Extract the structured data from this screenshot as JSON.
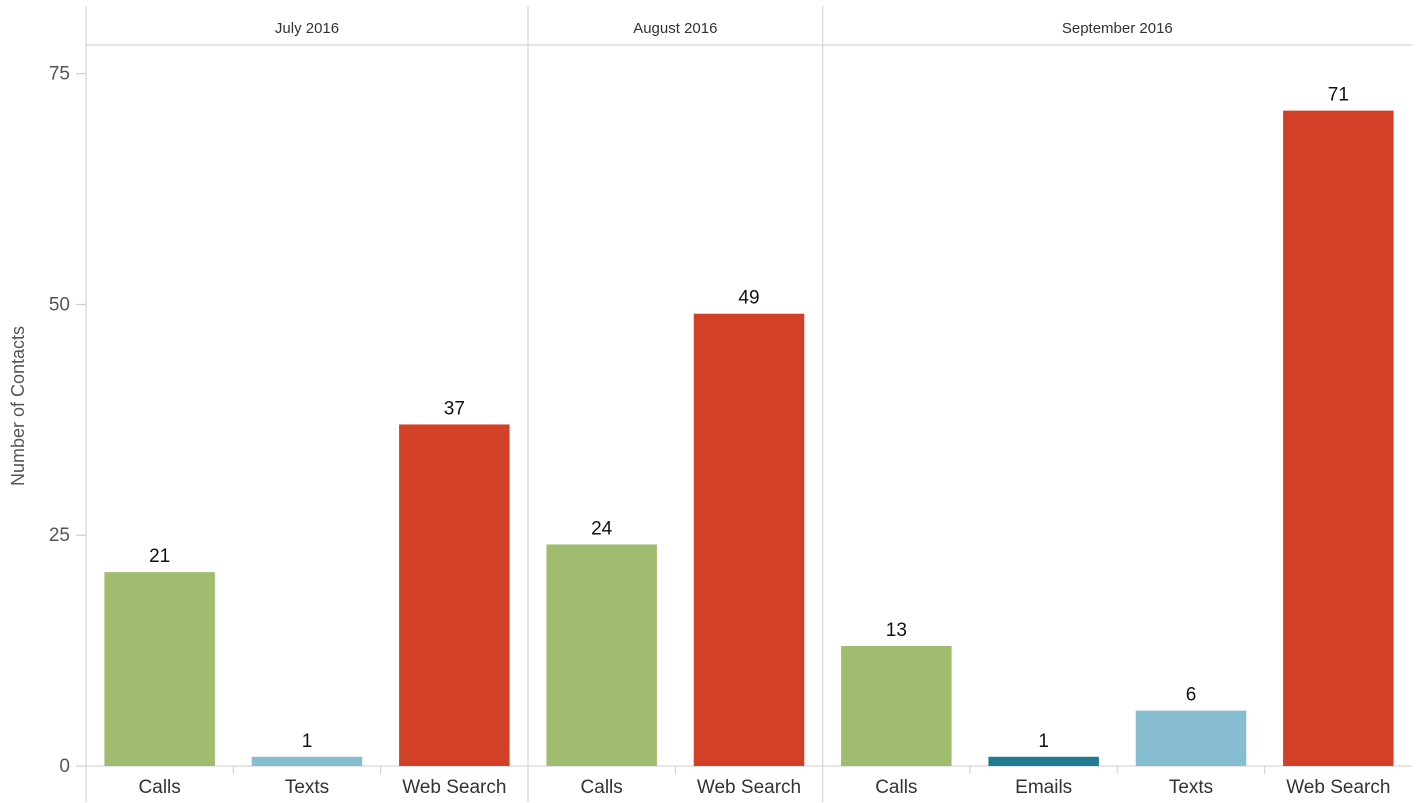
{
  "chart_data": {
    "type": "bar",
    "ylabel": "Number of Contacts",
    "ylim": [
      0,
      78
    ],
    "yticks": [
      0,
      25,
      50,
      75
    ],
    "grid": false,
    "panels": [
      {
        "title": "July 2016",
        "categories": [
          "Calls",
          "Texts",
          "Web Search"
        ],
        "values": [
          21,
          1,
          37
        ]
      },
      {
        "title": "August 2016",
        "categories": [
          "Calls",
          "Web Search"
        ],
        "values": [
          24,
          49
        ]
      },
      {
        "title": "September 2016",
        "categories": [
          "Calls",
          "Emails",
          "Texts",
          "Web Search"
        ],
        "values": [
          13,
          1,
          6,
          71
        ]
      }
    ],
    "category_colors": {
      "Calls": "#a0bd6f",
      "Emails": "#1f7a92",
      "Texts": "#86bdd1",
      "Web Search": "#d24127"
    }
  }
}
